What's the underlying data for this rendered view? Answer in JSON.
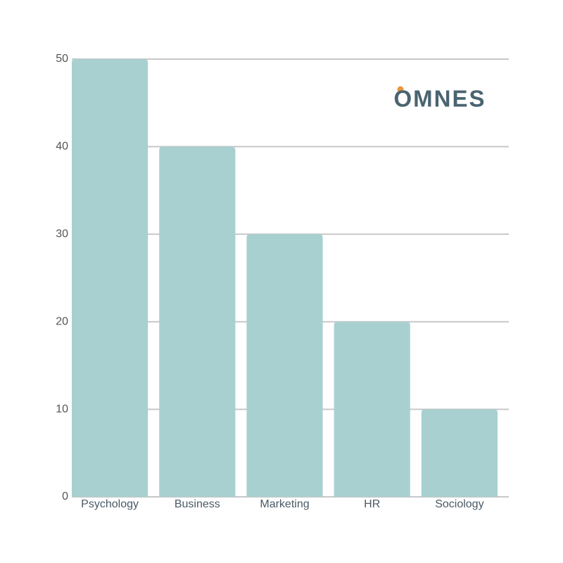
{
  "chart_data": {
    "type": "bar",
    "categories": [
      "Psychology",
      "Business",
      "Marketing",
      "HR",
      "Sociology"
    ],
    "values": [
      50,
      40,
      30,
      20,
      10
    ],
    "color": "#a8d0d0",
    "ylim": [
      0,
      50
    ],
    "yticks": [
      0,
      10,
      20,
      30,
      40,
      50
    ],
    "grid": true
  },
  "branding": {
    "logo": "OMNES"
  }
}
